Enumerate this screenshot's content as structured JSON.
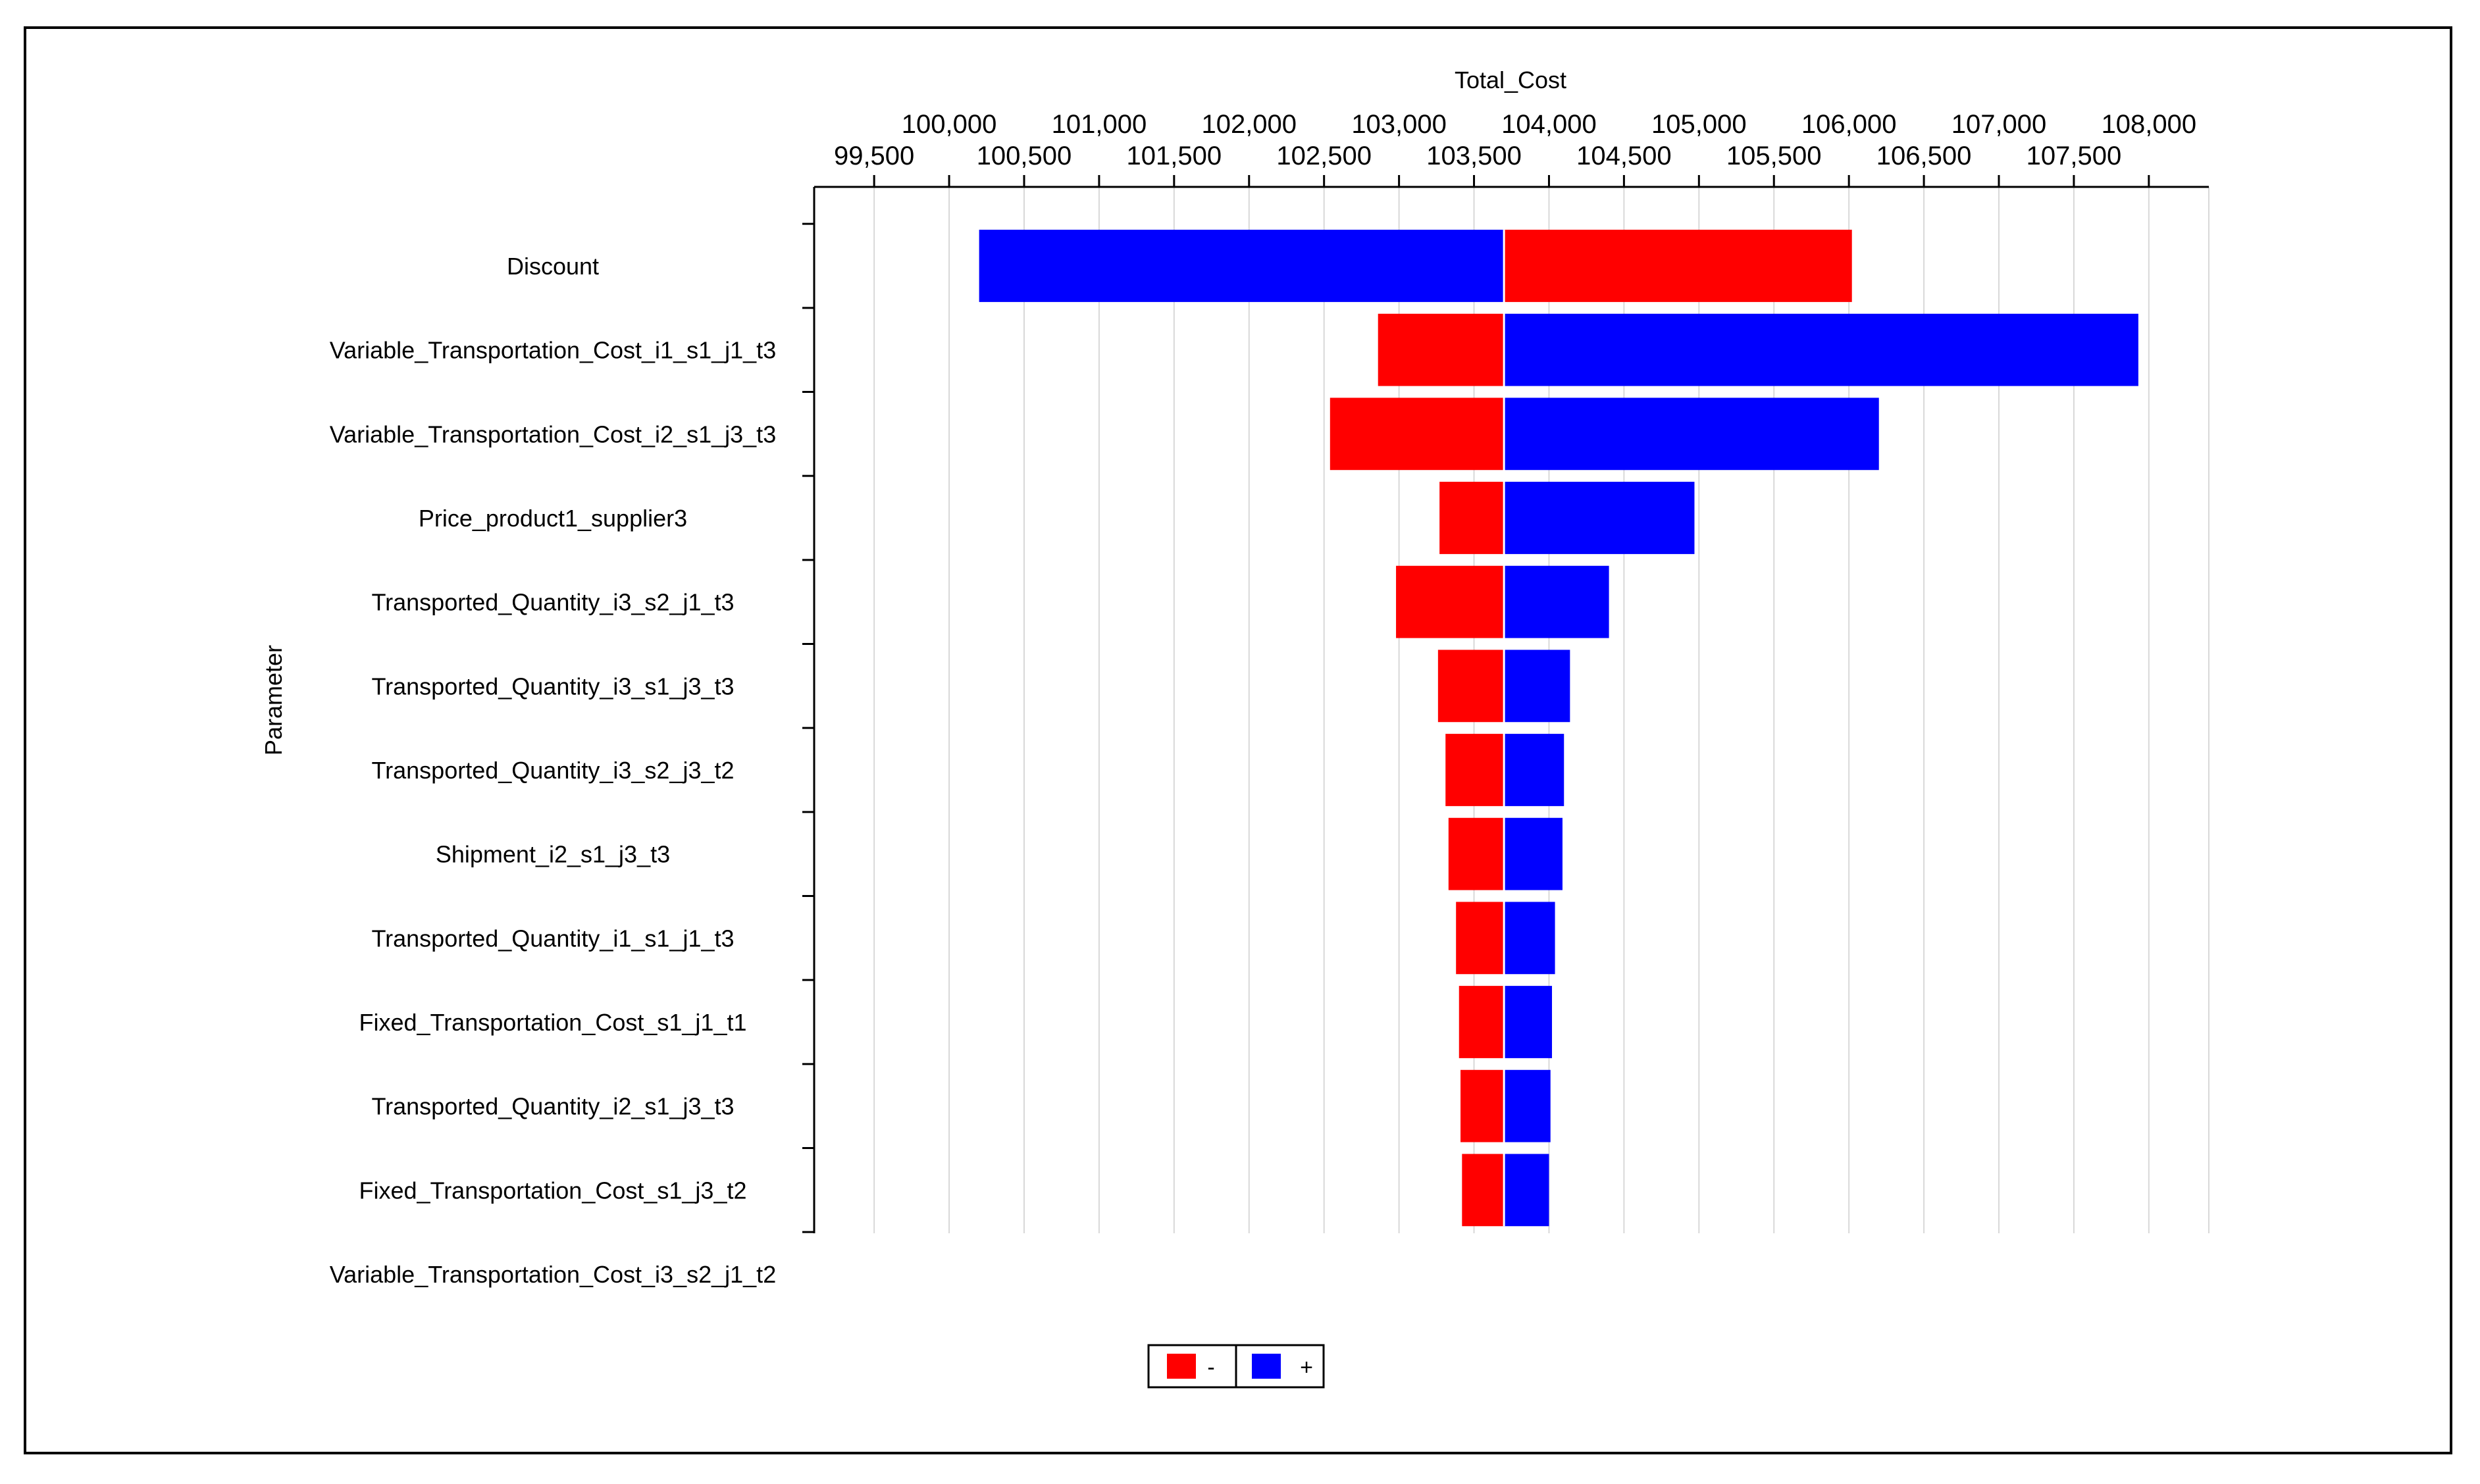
{
  "chart_data": {
    "type": "bar",
    "subtype": "tornado",
    "title": "Total_Cost",
    "xlabel": "Total_Cost",
    "ylabel": "Parameter",
    "base_value": 103700,
    "xlim": [
      99100,
      108400
    ],
    "x_ticks_upper": [
      "100,000",
      "101,000",
      "102,000",
      "103,000",
      "104,000",
      "105,000",
      "106,000",
      "107,000",
      "108,000"
    ],
    "x_ticks_lower": [
      "99,500",
      "100,500",
      "101,500",
      "102,500",
      "103,500",
      "104,500",
      "105,500",
      "106,500",
      "107,500"
    ],
    "x_tick_values_upper": [
      100000,
      101000,
      102000,
      103000,
      104000,
      105000,
      106000,
      107000,
      108000
    ],
    "x_tick_values_lower": [
      99500,
      100500,
      101500,
      102500,
      103500,
      104500,
      105500,
      106500,
      107500
    ],
    "categories": [
      "Discount",
      "Variable_Transportation_Cost_i1_s1_j1_t3",
      "Variable_Transportation_Cost_i2_s1_j3_t3",
      "Price_product1_supplier3",
      "Transported_Quantity_i3_s2_j1_t3",
      "Transported_Quantity_i3_s1_j3_t3",
      "Transported_Quantity_i3_s2_j3_t2",
      "Shipment_i2_s1_j3_t3",
      "Transported_Quantity_i1_s1_j1_t3",
      "Fixed_Transportation_Cost_s1_j1_t1",
      "Transported_Quantity_i2_s1_j3_t3",
      "Fixed_Transportation_Cost_s1_j3_t2",
      "Variable_Transportation_Cost_i3_s2_j1_t2"
    ],
    "series": [
      {
        "name": "-",
        "color": "#ff0000",
        "values": [
          106020,
          102860,
          102540,
          103270,
          102980,
          103260,
          103310,
          103330,
          103380,
          103400,
          103410,
          103420,
          null
        ]
      },
      {
        "name": "+",
        "color": "#0000ff",
        "values": [
          100200,
          107930,
          106200,
          104970,
          104400,
          104140,
          104100,
          104090,
          104040,
          104020,
          104010,
          104000,
          null
        ]
      }
    ],
    "legend": {
      "position": "bottom-center",
      "entries": [
        "-",
        "+"
      ]
    },
    "grid": true
  }
}
